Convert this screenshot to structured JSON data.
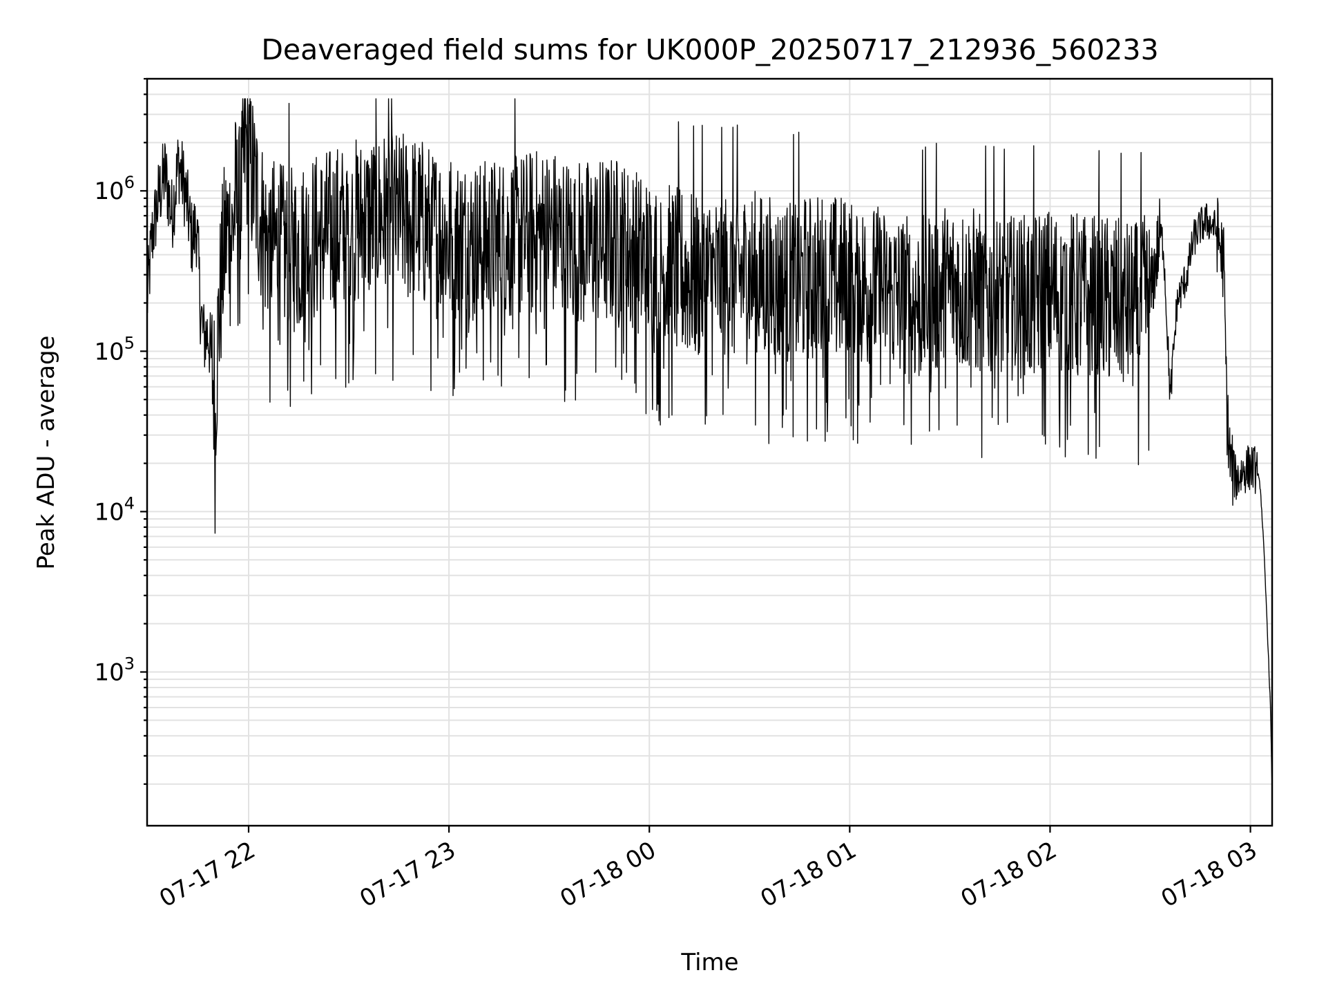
{
  "chart_data": {
    "type": "line",
    "title": "Deaveraged field sums for UK000P_20250717_212936_560233",
    "xlabel": "Time",
    "ylabel": "Peak ADU - average",
    "y_scale": "log",
    "ylim": [
      110,
      5000000
    ],
    "xlim": [
      "2025-07-17 21:29:36",
      "2025-07-18 03:06:30"
    ],
    "x_ticks": [
      {
        "label": "07-17 22",
        "value": "2025-07-17 22:00"
      },
      {
        "label": "07-17 23",
        "value": "2025-07-17 23:00"
      },
      {
        "label": "07-18 00",
        "value": "2025-07-18 00:00"
      },
      {
        "label": "07-18 01",
        "value": "2025-07-18 01:00"
      },
      {
        "label": "07-18 02",
        "value": "2025-07-18 02:00"
      },
      {
        "label": "07-18 03",
        "value": "2025-07-18 03:00"
      }
    ],
    "y_ticks": [
      {
        "base": "10",
        "exp": "3",
        "value": 1000
      },
      {
        "base": "10",
        "exp": "4",
        "value": 10000
      },
      {
        "base": "10",
        "exp": "5",
        "value": 100000
      },
      {
        "base": "10",
        "exp": "6",
        "value": 1000000
      }
    ],
    "grid": true,
    "line_color": "#000000",
    "series": [
      {
        "x": [
          "2025-07-17 21:29:36",
          "2025-07-17 21:31:00",
          "2025-07-17 21:33:00",
          "2025-07-17 21:35:00",
          "2025-07-17 21:37:00",
          "2025-07-17 21:39:00",
          "2025-07-17 21:41:00",
          "2025-07-17 21:43:00",
          "2025-07-17 21:44:30",
          "2025-07-17 21:45:30",
          "2025-07-17 21:46:30",
          "2025-07-17 21:48:00",
          "2025-07-17 21:49:00",
          "2025-07-17 21:50:00",
          "2025-07-17 21:51:00",
          "2025-07-17 21:52:00",
          "2025-07-17 21:53:00",
          "2025-07-17 21:54:00",
          "2025-07-17 21:55:00",
          "2025-07-17 21:56:00",
          "2025-07-17 21:57:00",
          "2025-07-17 21:58:00",
          "2025-07-17 21:59:00",
          "2025-07-17 22:05:00",
          "2025-07-17 22:12:00",
          "2025-07-17 22:20:00",
          "2025-07-17 22:30:00",
          "2025-07-17 22:40:00",
          "2025-07-17 22:50:00",
          "2025-07-17 23:00:00",
          "2025-07-17 23:10:00",
          "2025-07-17 23:20:00",
          "2025-07-17 23:30:00",
          "2025-07-17 23:40:00",
          "2025-07-17 23:50:00",
          "2025-07-18 00:00:00",
          "2025-07-18 00:10:00",
          "2025-07-18 00:20:00",
          "2025-07-18 00:30:00",
          "2025-07-18 00:40:00",
          "2025-07-18 00:50:00",
          "2025-07-18 01:00:00",
          "2025-07-18 01:10:00",
          "2025-07-18 01:20:00",
          "2025-07-18 01:30:00",
          "2025-07-18 01:40:00",
          "2025-07-18 01:50:00",
          "2025-07-18 02:00:00",
          "2025-07-18 02:10:00",
          "2025-07-18 02:20:00",
          "2025-07-18 02:25:00",
          "2025-07-18 02:30:00",
          "2025-07-18 02:32:00",
          "2025-07-18 02:33:00",
          "2025-07-18 02:34:00",
          "2025-07-18 02:36:00",
          "2025-07-18 02:38:00",
          "2025-07-18 02:41:00",
          "2025-07-18 02:43:00",
          "2025-07-18 02:45:00",
          "2025-07-18 02:47:00",
          "2025-07-18 02:49:00",
          "2025-07-18 02:50:00",
          "2025-07-18 02:51:00",
          "2025-07-18 02:52:00",
          "2025-07-18 02:53:00",
          "2025-07-18 02:54:00",
          "2025-07-18 02:55:00",
          "2025-07-18 02:56:00",
          "2025-07-18 02:58:00",
          "2025-07-18 03:00:00",
          "2025-07-18 03:02:00",
          "2025-07-18 03:03:00",
          "2025-07-18 03:04:00",
          "2025-07-18 03:05:00",
          "2025-07-18 03:06:00",
          "2025-07-18 03:06:30"
        ],
        "values": [
          200000,
          500000,
          900000,
          1300000,
          700000,
          1500000,
          1000000,
          500000,
          600000,
          200000,
          120000,
          130000,
          80000,
          50000,
          150000,
          300000,
          500000,
          600000,
          500000,
          900000,
          700000,
          1000000,
          2000000,
          500000,
          400000,
          500000,
          600000,
          700000,
          650000,
          500000,
          450000,
          500000,
          550000,
          450000,
          480000,
          350000,
          300000,
          280000,
          300000,
          250000,
          280000,
          270000,
          230000,
          200000,
          250000,
          220000,
          200000,
          230000,
          210000,
          200000,
          180000,
          220000,
          400000,
          550000,
          450000,
          50000,
          200000,
          300000,
          500000,
          600000,
          650000,
          600000,
          550000,
          450000,
          350000,
          40000,
          20000,
          17000,
          16000,
          18000,
          19000,
          18000,
          14000,
          6000,
          2000,
          600,
          180
        ]
      }
    ]
  }
}
